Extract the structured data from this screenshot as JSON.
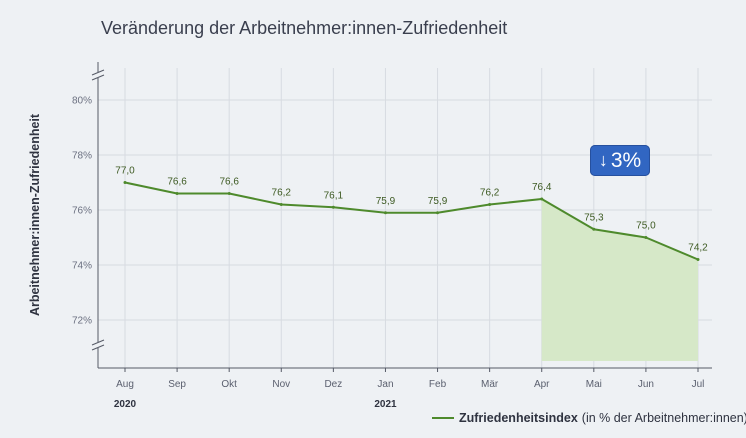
{
  "chart_data": {
    "type": "line",
    "title": "Veränderung der Arbeitnehmer:innen-Zufriedenheit",
    "ylabel": "Arbeitnehmer:innen-Zufriedenheit",
    "categories": [
      "Aug",
      "Sep",
      "Okt",
      "Nov",
      "Dez",
      "Jan",
      "Feb",
      "Mär",
      "Apr",
      "Mai",
      "Jun",
      "Jul"
    ],
    "years": [
      {
        "label": "2020",
        "category": "Aug"
      },
      {
        "label": "2021",
        "category": "Jan"
      }
    ],
    "series": [
      {
        "name": "Zufriedenheitsindex",
        "unit_note": "(in % der Arbeitnehmer:innen)",
        "values": [
          77.0,
          76.6,
          76.6,
          76.2,
          76.1,
          75.9,
          75.9,
          76.2,
          76.4,
          75.3,
          75.0,
          74.2
        ],
        "value_labels": [
          "77,0",
          "76,6",
          "76,6",
          "76,2",
          "76,1",
          "75,9",
          "75,9",
          "76,2",
          "76,4",
          "75,3",
          "75,0",
          "74,2"
        ],
        "color": "#4e8a2c"
      }
    ],
    "yticks": [
      72,
      74,
      76,
      78,
      80
    ],
    "ytick_labels": [
      "72%",
      "74%",
      "76%",
      "78%",
      "80%"
    ],
    "ylim": [
      71,
      81
    ],
    "axis_break": true,
    "grid": true,
    "highlight": {
      "from": "Apr",
      "to": "Jul",
      "color": "#d6e8c8"
    },
    "badge": {
      "arrow": "↓",
      "text": "3%",
      "color": "#3166c2"
    },
    "legend_position": "bottom-right"
  }
}
